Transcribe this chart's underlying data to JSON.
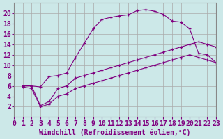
{
  "xlabel": "Windchill (Refroidissement éolien,°C)",
  "bg_color": "#cce8e8",
  "line_color": "#800080",
  "xlim": [
    0,
    23
  ],
  "ylim": [
    0,
    22
  ],
  "xticks": [
    0,
    1,
    2,
    3,
    4,
    5,
    6,
    7,
    8,
    9,
    10,
    11,
    12,
    13,
    14,
    15,
    16,
    17,
    18,
    19,
    20,
    21,
    22,
    23
  ],
  "yticks": [
    2,
    4,
    6,
    8,
    10,
    12,
    14,
    16,
    18,
    20
  ],
  "curve1_x": [
    1,
    2,
    3,
    4,
    5,
    6,
    7,
    8,
    9,
    10,
    11,
    12,
    13,
    14,
    15,
    16,
    17,
    18,
    19,
    20,
    21,
    22,
    23
  ],
  "curve1_y": [
    6.0,
    6.0,
    5.8,
    7.8,
    8.0,
    8.5,
    11.5,
    14.2,
    17.0,
    18.8,
    19.2,
    19.5,
    19.7,
    20.5,
    20.7,
    20.4,
    19.8,
    18.5,
    18.3,
    17.0,
    12.3,
    12.0,
    10.5
  ],
  "curve2_x": [
    1,
    2,
    3,
    4,
    5,
    6,
    7,
    8,
    9,
    10,
    11,
    12,
    13,
    14,
    15,
    16,
    17,
    18,
    19,
    20,
    21,
    22,
    23
  ],
  "curve2_y": [
    6.0,
    6.0,
    2.2,
    3.0,
    5.5,
    6.0,
    7.5,
    8.0,
    8.5,
    9.0,
    9.5,
    10.0,
    10.5,
    11.0,
    11.5,
    12.0,
    12.5,
    13.0,
    13.5,
    14.0,
    14.5,
    14.0,
    13.5
  ],
  "curve3_x": [
    1,
    2,
    3,
    4,
    5,
    6,
    7,
    8,
    9,
    10,
    11,
    12,
    13,
    14,
    15,
    16,
    17,
    18,
    19,
    20,
    21,
    22,
    23
  ],
  "curve3_y": [
    5.8,
    5.5,
    2.0,
    2.5,
    4.0,
    4.5,
    5.5,
    6.0,
    6.5,
    7.0,
    7.5,
    8.0,
    8.5,
    9.0,
    9.5,
    10.0,
    10.5,
    11.0,
    11.5,
    12.0,
    11.5,
    11.0,
    10.5
  ],
  "grid_color": "#aaaaaa",
  "font_family": "monospace",
  "fontsize_ticks": 7,
  "fontsize_label": 7
}
